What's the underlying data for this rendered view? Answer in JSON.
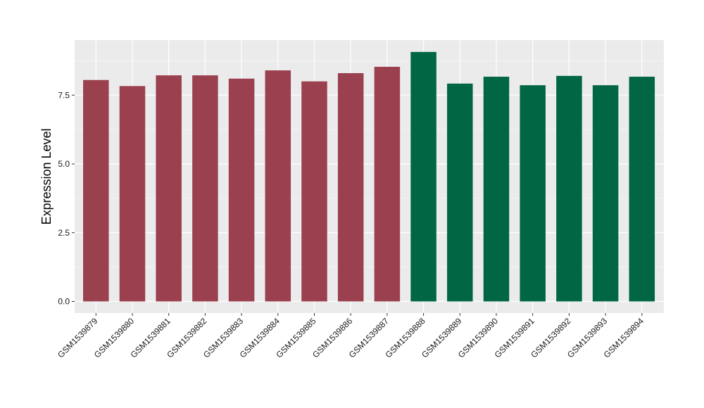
{
  "chart_data": {
    "type": "bar",
    "title": "",
    "xlabel": "",
    "ylabel": "Expression Level",
    "ylim": [
      0,
      9.5
    ],
    "yticks": [
      "0.0",
      "2.5",
      "5.0",
      "7.5"
    ],
    "grid": true,
    "categories": [
      "GSM1539879",
      "GSM1539880",
      "GSM1539881",
      "GSM1539882",
      "GSM1539883",
      "GSM1539884",
      "GSM1539885",
      "GSM1539886",
      "GSM1539887",
      "GSM1539888",
      "GSM1539889",
      "GSM1539890",
      "GSM1539891",
      "GSM1539892",
      "GSM1539893",
      "GSM1539894"
    ],
    "values": [
      8.05,
      7.83,
      8.22,
      8.22,
      8.1,
      8.4,
      8.0,
      8.3,
      8.53,
      9.07,
      7.92,
      8.17,
      7.86,
      8.2,
      7.86,
      8.17
    ],
    "bar_colors": [
      "#9a404f",
      "#9a404f",
      "#9a404f",
      "#9a404f",
      "#9a404f",
      "#9a404f",
      "#9a404f",
      "#9a404f",
      "#9a404f",
      "#006644",
      "#006644",
      "#006644",
      "#006644",
      "#006644",
      "#006644",
      "#006644"
    ],
    "panel_background": "#ebebeb",
    "gridline_color": "#ffffff"
  }
}
